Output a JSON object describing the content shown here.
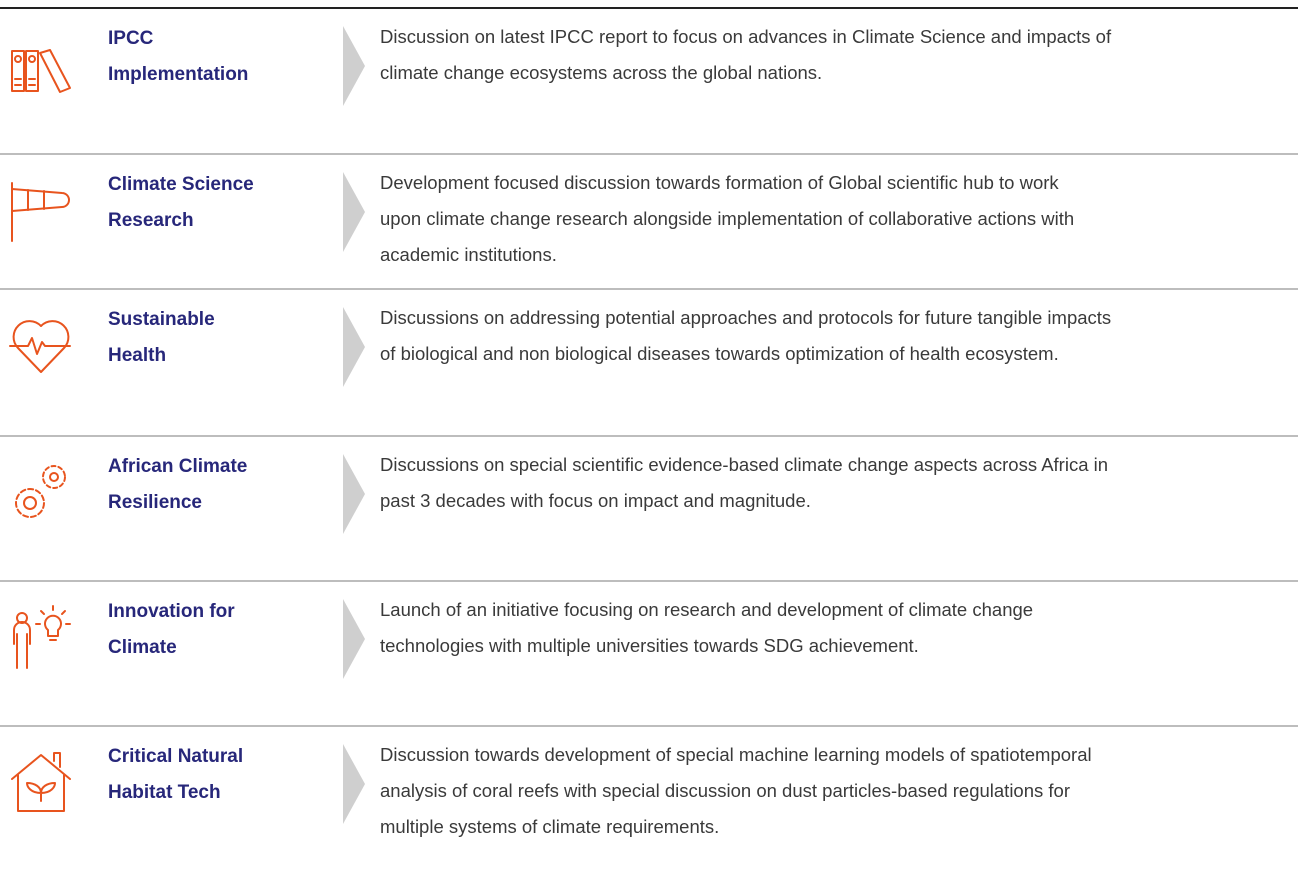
{
  "items": [
    {
      "title": [
        "IPCC",
        "Implementation"
      ],
      "description": [
        "Discussion on latest IPCC report to focus on advances in Climate Science and impacts of",
        "climate change ecosystems across the global nations."
      ]
    },
    {
      "title": [
        "Climate Science",
        "Research"
      ],
      "description": [
        "Development focused discussion towards formation of Global scientific hub to work",
        "upon climate change research alongside implementation of collaborative actions with",
        "academic institutions."
      ]
    },
    {
      "title": [
        "Sustainable",
        "Health"
      ],
      "description": [
        "Discussions on addressing potential approaches and protocols for future tangible impacts",
        "of biological and non biological diseases towards optimization of health ecosystem."
      ]
    },
    {
      "title": [
        "African Climate",
        "Resilience"
      ],
      "description": [
        "Discussions on special scientific evidence-based climate change aspects across Africa in",
        "past 3 decades with focus on impact and magnitude."
      ]
    },
    {
      "title": [
        "Innovation for",
        "Climate"
      ],
      "description": [
        "Launch of an initiative focusing on research and development of climate change",
        "technologies with multiple universities towards SDG achievement."
      ]
    },
    {
      "title": [
        "Critical Natural",
        "Habitat Tech"
      ],
      "description": [
        "Discussion towards development of special machine learning models of spatiotemporal",
        "analysis of coral reefs with special discussion on dust particles-based regulations for",
        "multiple systems of climate requirements."
      ]
    }
  ]
}
